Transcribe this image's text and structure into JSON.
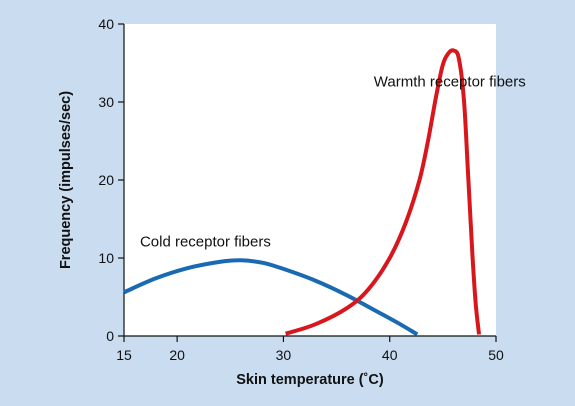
{
  "chart_data": {
    "type": "line",
    "xlabel": "Skin temperature (˚C)",
    "ylabel": "Frequency (impulses/sec)",
    "xlim": [
      15,
      50
    ],
    "ylim": [
      0,
      40
    ],
    "xticks": [
      15,
      20,
      30,
      40,
      50
    ],
    "yticks": [
      0,
      10,
      20,
      30,
      40
    ],
    "grid": false,
    "legend": "none",
    "series": [
      {
        "name": "Cold receptor fibers",
        "color": "#1a6ab3",
        "x": [
          15,
          18,
          21,
          24,
          26,
          28,
          30,
          33,
          36,
          39,
          41,
          42.6
        ],
        "y": [
          5.6,
          7.4,
          8.7,
          9.5,
          9.7,
          9.4,
          8.6,
          7.1,
          5.2,
          3.0,
          1.5,
          0.2
        ]
      },
      {
        "name": "Warmth receptor fibers",
        "color": "#d8171d",
        "x": [
          30.2,
          33,
          36,
          38,
          40,
          41.5,
          42.8,
          43.6,
          44.4,
          45.0,
          45.5,
          46.0,
          46.5,
          47.0,
          47.4,
          47.8,
          48.1,
          48.4
        ],
        "y": [
          0.3,
          1.5,
          3.6,
          6.0,
          10.0,
          14.5,
          20.0,
          25.0,
          31.0,
          34.8,
          36.2,
          36.6,
          35.6,
          30.0,
          20.0,
          10.0,
          4.0,
          0.2
        ]
      }
    ],
    "annotations": [
      {
        "text": "Cold receptor fibers",
        "x": 16.5,
        "y": 11.5,
        "series": 0
      },
      {
        "text": "Warmth receptor fibers",
        "x": 38.5,
        "y": 32.0,
        "series": 1
      }
    ]
  }
}
